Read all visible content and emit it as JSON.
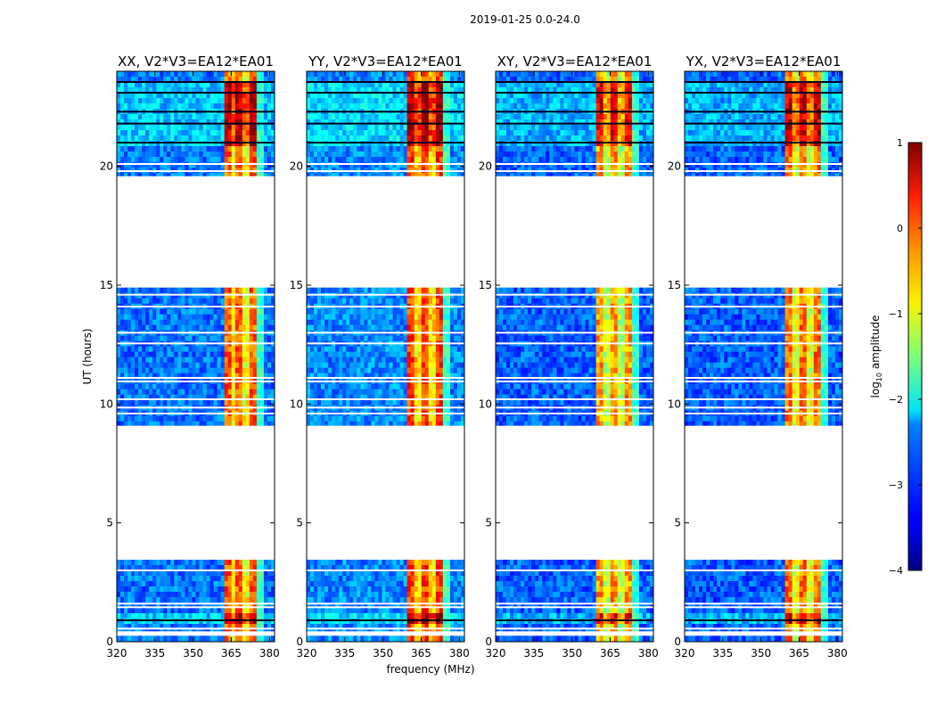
{
  "figure": {
    "suptitle": "2019-01-25 0.0-24.0",
    "xlabel": "frequency (MHz)",
    "ylabel": "UT (hours)"
  },
  "colorbar": {
    "label_prefix": "log",
    "label_sub": "10",
    "label_suffix": " amplitude",
    "min": -4,
    "max": 1,
    "ticks": [
      -4,
      -3,
      -2,
      -1,
      0,
      1
    ],
    "tick_labels": [
      "−4",
      "−3",
      "−2",
      "−1",
      "0",
      "1"
    ],
    "colormap": "jet"
  },
  "chart_data": {
    "type": "heatmap",
    "xlim": [
      320,
      382
    ],
    "ylim": [
      0,
      24
    ],
    "xticks": [
      320,
      335,
      350,
      365,
      380
    ],
    "xtick_labels": [
      "320",
      "335",
      "350",
      "365",
      "380"
    ],
    "yticks": [
      0,
      5,
      10,
      15,
      20
    ],
    "ytick_labels": [
      "0",
      "5",
      "10",
      "15",
      "20"
    ],
    "data_time_blocks_hours": [
      [
        0.0,
        0.25
      ],
      [
        0.45,
        3.45
      ],
      [
        9.1,
        14.9
      ],
      [
        19.6,
        24.0
      ]
    ],
    "noisy_bands_hours": [
      [
        0.8,
        1.3
      ],
      [
        20.8,
        23.6
      ]
    ],
    "panels": [
      {
        "title": "XX, V2*V3=EA12*EA01",
        "strong_band_mhz": [
          362,
          375
        ],
        "band_level": -0.3,
        "background_level": -2.8
      },
      {
        "title": "YY, V2*V3=EA12*EA01",
        "strong_band_mhz": [
          360,
          374
        ],
        "band_level": -0.1,
        "background_level": -2.7
      },
      {
        "title": "XY, V2*V3=EA12*EA01",
        "strong_band_mhz": [
          360,
          374
        ],
        "band_level": -0.6,
        "background_level": -2.9
      },
      {
        "title": "YX, V2*V3=EA12*EA01",
        "strong_band_mhz": [
          360,
          374
        ],
        "band_level": -0.4,
        "background_level": -2.9
      }
    ]
  }
}
